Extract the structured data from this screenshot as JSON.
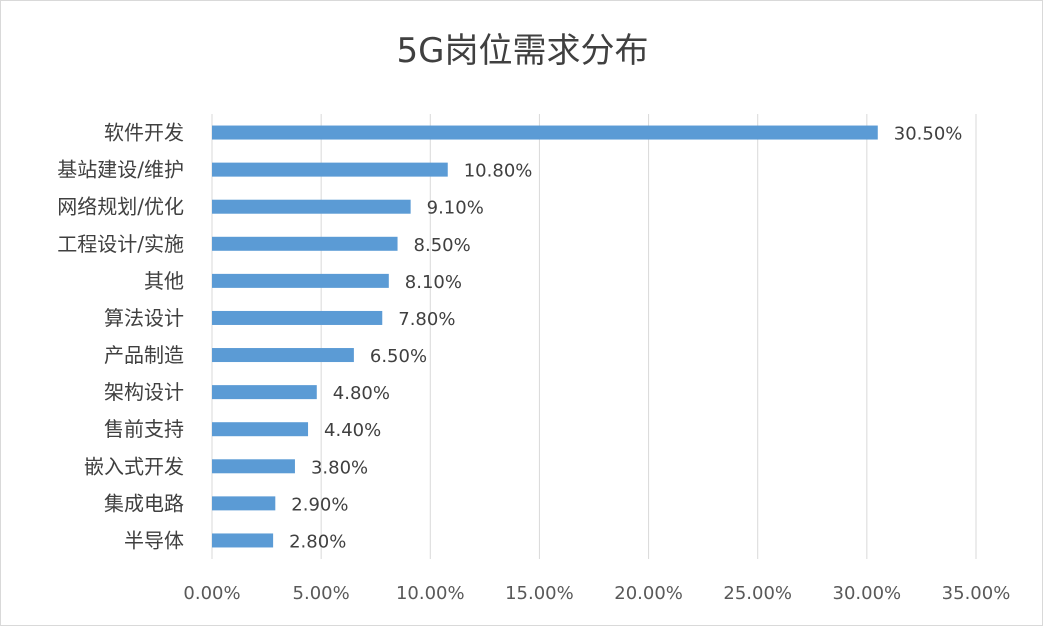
{
  "chart_data": {
    "type": "bar",
    "orientation": "horizontal",
    "title": "5G岗位需求分布",
    "xlabel": "",
    "ylabel": "",
    "categories": [
      "软件开发",
      "基站建设/维护",
      "网络规划/优化",
      "工程设计/实施",
      "其他",
      "算法设计",
      "产品制造",
      "架构设计",
      "售前支持",
      "嵌入式开发",
      "集成电路",
      "半导体"
    ],
    "values": [
      30.5,
      10.8,
      9.1,
      8.5,
      8.1,
      7.8,
      6.5,
      4.8,
      4.4,
      3.8,
      2.9,
      2.8
    ],
    "value_labels": [
      "30.50%",
      "10.80%",
      "9.10%",
      "8.50%",
      "8.10%",
      "7.80%",
      "6.50%",
      "4.80%",
      "4.40%",
      "3.80%",
      "2.90%",
      "2.80%"
    ],
    "xlim": [
      0,
      35
    ],
    "xticks": [
      0,
      5,
      10,
      15,
      20,
      25,
      30,
      35
    ],
    "xtick_labels": [
      "0.00%",
      "5.00%",
      "10.00%",
      "15.00%",
      "20.00%",
      "25.00%",
      "30.00%",
      "35.00%"
    ],
    "grid": "vertical",
    "legend": "none",
    "bar_color": "#5b9bd5",
    "grid_color": "#d9d9d9"
  }
}
